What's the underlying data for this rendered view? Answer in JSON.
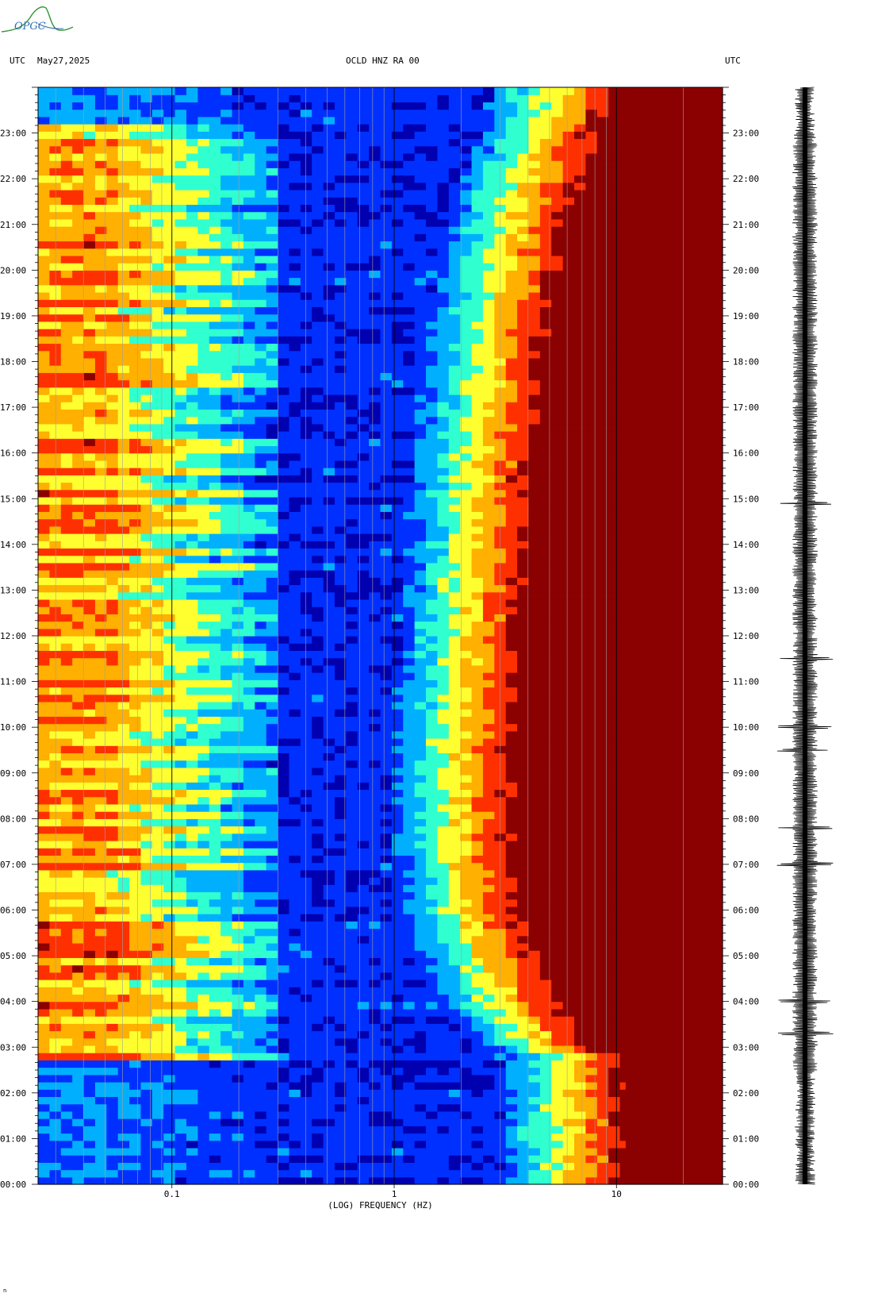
{
  "header": {
    "left_tz": "UTC",
    "date": "May27,2025",
    "station": "OCLD HNZ RA 00",
    "right_tz": "UTC"
  },
  "logo": {
    "text": "OPGC",
    "swoosh_color": "#3a9a3a",
    "text_color": "#2d6fb6"
  },
  "footnote": "n",
  "chart_data": {
    "type": "heatmap",
    "title": "",
    "xlabel": "(LOG) FREQUENCY (HZ)",
    "ylabel": "",
    "x_scale": "log",
    "xlim": [
      0.025,
      30
    ],
    "x_ticks": [
      {
        "value": 0.1,
        "label": "0.1"
      },
      {
        "value": 1,
        "label": "1"
      },
      {
        "value": 10,
        "label": "10"
      }
    ],
    "y_unit": "hours UTC",
    "ylim": [
      0,
      24
    ],
    "y_ticks": [
      {
        "value": 23,
        "label": "23:00"
      },
      {
        "value": 22,
        "label": "22:00"
      },
      {
        "value": 21,
        "label": "21:00"
      },
      {
        "value": 20,
        "label": "20:00"
      },
      {
        "value": 19,
        "label": "19:00"
      },
      {
        "value": 18,
        "label": "18:00"
      },
      {
        "value": 17,
        "label": "17:00"
      },
      {
        "value": 16,
        "label": "16:00"
      },
      {
        "value": 15,
        "label": "15:00"
      },
      {
        "value": 14,
        "label": "14:00"
      },
      {
        "value": 13,
        "label": "13:00"
      },
      {
        "value": 12,
        "label": "12:00"
      },
      {
        "value": 11,
        "label": "11:00"
      },
      {
        "value": 10,
        "label": "10:00"
      },
      {
        "value": 9,
        "label": "09:00"
      },
      {
        "value": 8,
        "label": "08:00"
      },
      {
        "value": 7,
        "label": "07:00"
      },
      {
        "value": 6,
        "label": "06:00"
      },
      {
        "value": 5,
        "label": "05:00"
      },
      {
        "value": 4,
        "label": "04:00"
      },
      {
        "value": 3,
        "label": "03:00"
      },
      {
        "value": 2,
        "label": "02:00"
      },
      {
        "value": 1,
        "label": "01:00"
      },
      {
        "value": 0,
        "label": "00:00"
      }
    ],
    "colormap": [
      "#0000b0",
      "#0030ff",
      "#00b0ff",
      "#30ffd0",
      "#ffff30",
      "#ffb000",
      "#ff3000",
      "#8b0000"
    ],
    "saturated_above_hz": 11,
    "power_boundary": [
      {
        "t": 0,
        "hz": 11
      },
      {
        "t": 2.8,
        "hz": 11
      },
      {
        "t": 3.1,
        "hz": 8
      },
      {
        "t": 4.0,
        "hz": 5.5
      },
      {
        "t": 5.0,
        "hz": 4.5
      },
      {
        "t": 6.0,
        "hz": 3.7
      },
      {
        "t": 8.0,
        "hz": 3.4
      },
      {
        "t": 10.0,
        "hz": 3.5
      },
      {
        "t": 12.0,
        "hz": 3.8
      },
      {
        "t": 14.0,
        "hz": 4.0
      },
      {
        "t": 16.0,
        "hz": 4.3
      },
      {
        "t": 18.0,
        "hz": 4.8
      },
      {
        "t": 20.0,
        "hz": 5.5
      },
      {
        "t": 21.5,
        "hz": 6.5
      },
      {
        "t": 23.0,
        "hz": 8.5
      },
      {
        "t": 24.0,
        "hz": 10
      }
    ],
    "microseism_active_hours": [
      2.8,
      23.2
    ],
    "microseism_band_hz": [
      0.03,
      0.2
    ],
    "seismogram_column": "right",
    "seismogram_spikes_utc": [
      14.9,
      11.5,
      10.0,
      9.5,
      7.8,
      7.0,
      4.0,
      3.3
    ],
    "colors": {
      "background": "#ffffff",
      "grid": "#a0a0a0",
      "decade_line": "#000000"
    }
  }
}
